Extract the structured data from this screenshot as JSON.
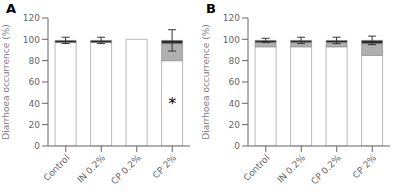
{
  "chart_data": [
    {
      "type": "bar",
      "title": "A",
      "stacked": true,
      "categories": [
        "Control",
        "IN 0.2%",
        "CP 0.2%",
        "CP 2%"
      ],
      "series": [
        {
          "color": "#ffffff",
          "values": [
            97,
            97,
            100,
            80
          ]
        },
        {
          "color": "#b0b0b0",
          "values": [
            0,
            0,
            0,
            16
          ]
        },
        {
          "color": "#2a2a2a",
          "values": [
            2,
            2,
            0,
            3
          ]
        }
      ],
      "errors_top": [
        3,
        3,
        0,
        10
      ],
      "errors_bottom": [
        3,
        3,
        0,
        10
      ],
      "annotations": [
        {
          "text": "*",
          "x": "CP 2%",
          "y": 40
        }
      ],
      "ylabel": "Diarrhoea occurrence (%)",
      "ylim": [
        0,
        120
      ],
      "yticks": [
        0,
        20,
        40,
        60,
        80,
        100,
        120
      ]
    },
    {
      "type": "bar",
      "title": "B",
      "stacked": true,
      "categories": [
        "Control",
        "IN 0.2%",
        "CP 0.2%",
        "CP 2%"
      ],
      "series": [
        {
          "color": "#ffffff",
          "values": [
            93,
            93,
            93,
            85
          ]
        },
        {
          "color": "#b0b0b0",
          "values": [
            4,
            4,
            4,
            11
          ]
        },
        {
          "color": "#2a2a2a",
          "values": [
            2,
            2,
            2,
            3
          ]
        }
      ],
      "errors_top": [
        2,
        3,
        3,
        4
      ],
      "errors_bottom": [
        2,
        3,
        3,
        4
      ],
      "ylabel": "Diarrhoea occurrence (%)",
      "ylim": [
        0,
        120
      ],
      "yticks": [
        0,
        20,
        40,
        60,
        80,
        100,
        120
      ]
    }
  ]
}
